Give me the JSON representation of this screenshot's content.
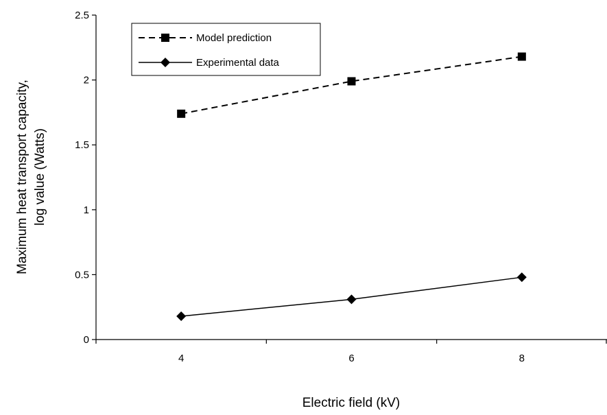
{
  "chart_data": {
    "type": "line",
    "title": "",
    "xlabel": "Electric field (kV)",
    "ylabel_lines": [
      "Maximum heat transport capacity,",
      "log value (Watts)"
    ],
    "x": [
      4,
      6,
      8
    ],
    "x_ticks": [
      "4",
      "6",
      "8"
    ],
    "xlim": [
      3,
      9
    ],
    "ylim": [
      0,
      2.5
    ],
    "y_ticks": [
      "0",
      "0.5",
      "1",
      "1.5",
      "2",
      "2.5"
    ],
    "grid": false,
    "legend_position": "top-left",
    "series": [
      {
        "name": "Model prediction",
        "values": [
          1.74,
          1.99,
          2.18
        ],
        "line_style": "dashed",
        "marker": "square",
        "color": "#000000"
      },
      {
        "name": "Experimental data",
        "values": [
          0.18,
          0.31,
          0.48
        ],
        "line_style": "solid",
        "marker": "diamond",
        "color": "#000000"
      }
    ]
  }
}
